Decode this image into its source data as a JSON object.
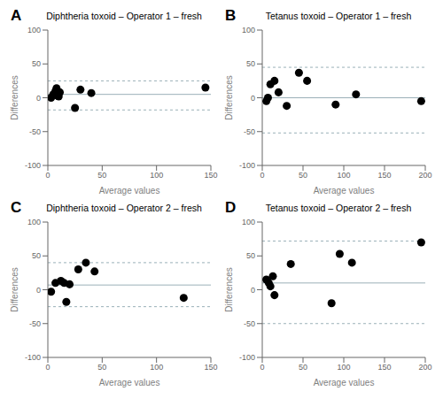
{
  "chart_data": [
    {
      "type": "scatter",
      "annotations": [
        "A"
      ],
      "title": "Diphtheria toxoid – Operator 1 – fresh",
      "xlabel": "Average values",
      "ylabel": "Differences",
      "xlim": [
        0,
        150
      ],
      "ylim": [
        -100,
        100
      ],
      "xticks": [
        0,
        50,
        100,
        150
      ],
      "yticks": [
        -100,
        -50,
        0,
        50,
        100
      ],
      "grid": false,
      "color": "#000000",
      "x": [
        3,
        5,
        7,
        8,
        9,
        10,
        11,
        25,
        30,
        40,
        145
      ],
      "values": [
        0,
        5,
        10,
        14,
        3,
        2,
        8,
        -15,
        12,
        7,
        15
      ],
      "reference_lines": [
        {
          "value": 5,
          "line_style": "solid",
          "color": "#9ab0b8"
        },
        {
          "value": 25,
          "line_style": "dashed",
          "color": "#9ab0b8"
        },
        {
          "value": -18,
          "line_style": "dashed",
          "color": "#9ab0b8"
        }
      ]
    },
    {
      "type": "scatter",
      "annotations": [
        "B"
      ],
      "title": "Tetanus toxoid – Operator 1 – fresh",
      "xlabel": "Average values",
      "ylabel": "Differences",
      "xlim": [
        0,
        200
      ],
      "ylim": [
        -100,
        100
      ],
      "xticks": [
        0,
        50,
        100,
        150,
        200
      ],
      "yticks": [
        -100,
        -50,
        0,
        50,
        100
      ],
      "grid": false,
      "color": "#000000",
      "x": [
        5,
        7,
        10,
        15,
        20,
        30,
        45,
        55,
        90,
        115,
        195
      ],
      "values": [
        -5,
        0,
        20,
        25,
        8,
        -12,
        37,
        25,
        -10,
        5,
        -5
      ],
      "reference_lines": [
        {
          "value": 0,
          "line_style": "solid",
          "color": "#9ab0b8"
        },
        {
          "value": 45,
          "line_style": "dashed",
          "color": "#9ab0b8"
        },
        {
          "value": -52,
          "line_style": "dashed",
          "color": "#9ab0b8"
        }
      ]
    },
    {
      "type": "scatter",
      "annotations": [
        "C"
      ],
      "title": "Diphtheria toxoid – Operator 2 – fresh",
      "xlabel": "Average values",
      "ylabel": "Differences",
      "xlim": [
        0,
        150
      ],
      "ylim": [
        -100,
        100
      ],
      "xticks": [
        0,
        50,
        100,
        150
      ],
      "yticks": [
        -100,
        -50,
        0,
        50,
        100
      ],
      "grid": false,
      "color": "#000000",
      "x": [
        3,
        7,
        12,
        15,
        17,
        20,
        28,
        35,
        43,
        125
      ],
      "values": [
        -3,
        10,
        13,
        10,
        -18,
        8,
        30,
        40,
        27,
        -12
      ],
      "reference_lines": [
        {
          "value": 7,
          "line_style": "solid",
          "color": "#9ab0b8"
        },
        {
          "value": 40,
          "line_style": "dashed",
          "color": "#9ab0b8"
        },
        {
          "value": -25,
          "line_style": "dashed",
          "color": "#9ab0b8"
        }
      ]
    },
    {
      "type": "scatter",
      "annotations": [
        "D"
      ],
      "title": "Tetanus toxoid – Operator 2 – fresh",
      "xlabel": "Average values",
      "ylabel": "Differences",
      "xlim": [
        0,
        200
      ],
      "ylim": [
        -100,
        100
      ],
      "xticks": [
        0,
        50,
        100,
        150,
        200
      ],
      "yticks": [
        -100,
        -50,
        0,
        50,
        100
      ],
      "grid": false,
      "color": "#000000",
      "x": [
        5,
        8,
        10,
        13,
        15,
        35,
        85,
        95,
        110,
        195
      ],
      "values": [
        15,
        10,
        5,
        20,
        -8,
        38,
        -20,
        53,
        40,
        70
      ],
      "reference_lines": [
        {
          "value": 10,
          "line_style": "solid",
          "color": "#9ab0b8"
        },
        {
          "value": 72,
          "line_style": "dashed",
          "color": "#9ab0b8"
        },
        {
          "value": -50,
          "line_style": "dashed",
          "color": "#9ab0b8"
        }
      ]
    }
  ]
}
